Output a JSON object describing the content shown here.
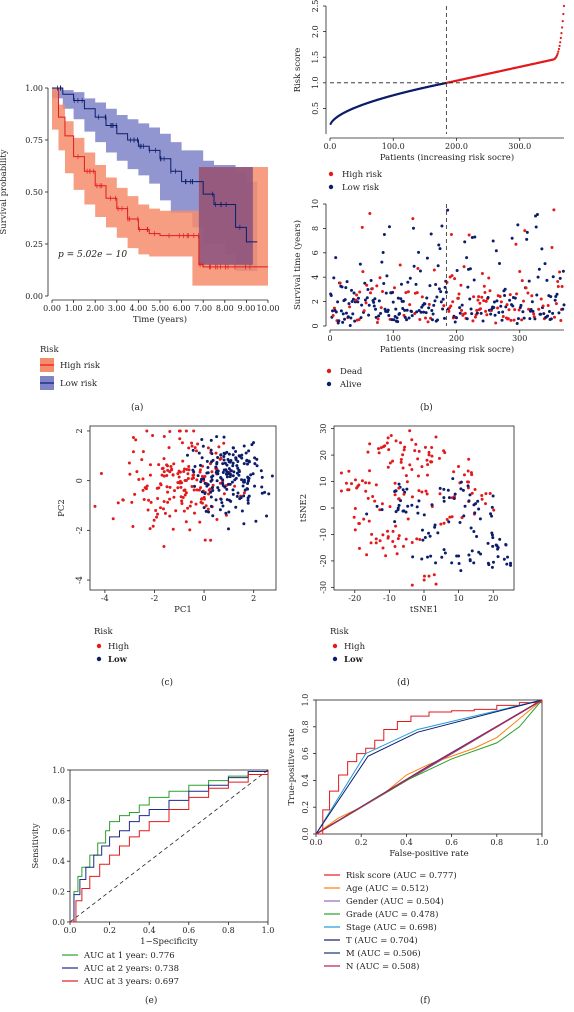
{
  "colors": {
    "high": "#e31a1c",
    "low": "#0b1d6b",
    "high_band": "#f58c6c",
    "low_band": "#7f84c8",
    "overlap": "#7a4a7e"
  },
  "panel_a": {
    "caption": "(a)",
    "pvalue": "p = 5.02e − 10",
    "legend_title": "Risk",
    "legend_items": [
      "High risk",
      "Low risk"
    ]
  },
  "panel_b": {
    "caption": "(b)",
    "top_legend": [
      "High risk",
      "Low risk"
    ],
    "bottom_legend": [
      "Dead",
      "Alive"
    ]
  },
  "panel_c": {
    "caption": "(c)",
    "legend_title": "Risk",
    "legend_items": [
      "High",
      "Low"
    ]
  },
  "panel_d": {
    "caption": "(d)",
    "legend_title": "Risk",
    "legend_items": [
      "High",
      "Low"
    ]
  },
  "panel_e": {
    "caption": "(e)",
    "legend": [
      "AUC at 1 year: 0.776",
      "AUC at 2 years: 0.738",
      "AUC at 3 years: 0.697"
    ]
  },
  "panel_f": {
    "caption": "(f)",
    "legend": [
      "Risk score (AUC = 0.777)",
      "Age (AUC = 0.512)",
      "Gender (AUC = 0.504)",
      "Grade (AUC = 0.478)",
      "Stage (AUC = 0.698)",
      "T (AUC = 0.704)",
      "M (AUC = 0.506)",
      "N (AUC = 0.508)"
    ]
  },
  "chart_data": [
    {
      "id": "km",
      "type": "line",
      "xlabel": "Time (years)",
      "ylabel": "Survival probability",
      "xlim": [
        0,
        10
      ],
      "ylim": [
        0,
        1
      ],
      "xticks": [
        0,
        1,
        2,
        3,
        4,
        5,
        6,
        7,
        8,
        9,
        10
      ],
      "yticks": [
        0.0,
        0.25,
        0.5,
        0.75,
        1.0
      ],
      "grid": false,
      "series": [
        {
          "name": "High risk",
          "x": [
            0,
            0.3,
            0.6,
            1,
            1.5,
            2,
            2.5,
            3,
            3.5,
            4,
            4.5,
            5,
            5.5,
            6,
            6.5,
            6.8,
            7,
            8,
            9,
            10
          ],
          "y": [
            1,
            0.86,
            0.77,
            0.67,
            0.6,
            0.53,
            0.47,
            0.42,
            0.37,
            0.32,
            0.3,
            0.29,
            0.29,
            0.29,
            0.29,
            0.15,
            0.14,
            0.14,
            0.14,
            0.14
          ],
          "band_upper": [
            1,
            0.92,
            0.84,
            0.76,
            0.69,
            0.63,
            0.57,
            0.52,
            0.48,
            0.44,
            0.42,
            0.41,
            0.41,
            0.41,
            0.41,
            0.62,
            0.62,
            0.62,
            0.62,
            0.62
          ],
          "band_lower": [
            1,
            0.8,
            0.7,
            0.59,
            0.51,
            0.44,
            0.38,
            0.33,
            0.28,
            0.23,
            0.2,
            0.19,
            0.19,
            0.19,
            0.19,
            0.05,
            0.05,
            0.05,
            0.05,
            0.05
          ]
        },
        {
          "name": "Low risk",
          "x": [
            0,
            0.5,
            1,
            1.5,
            2,
            2.5,
            3,
            3.5,
            4,
            4.5,
            5,
            5.5,
            6,
            6.5,
            7,
            7.5,
            8,
            8.5,
            9,
            9.5
          ],
          "y": [
            1,
            0.97,
            0.94,
            0.9,
            0.86,
            0.82,
            0.78,
            0.75,
            0.72,
            0.7,
            0.66,
            0.6,
            0.55,
            0.55,
            0.49,
            0.44,
            0.44,
            0.33,
            0.26,
            0.26
          ],
          "band_upper": [
            1,
            0.99,
            0.98,
            0.95,
            0.93,
            0.9,
            0.87,
            0.85,
            0.83,
            0.81,
            0.78,
            0.74,
            0.7,
            0.7,
            0.65,
            0.63,
            0.63,
            0.6,
            0.55,
            0.55
          ],
          "band_lower": [
            1,
            0.95,
            0.9,
            0.85,
            0.79,
            0.74,
            0.69,
            0.65,
            0.61,
            0.58,
            0.54,
            0.46,
            0.4,
            0.4,
            0.33,
            0.25,
            0.25,
            0.2,
            0.12,
            0.12
          ]
        }
      ]
    },
    {
      "id": "riskscore",
      "type": "scatter",
      "xlabel": "Patients (increasing risk socre)",
      "ylabel": "Risk score",
      "xlim": [
        0,
        370
      ],
      "ylim": [
        0,
        2.5
      ],
      "xticks": [
        0,
        100,
        200,
        300
      ],
      "yticks": [
        0.5,
        1.0,
        1.5,
        2.0,
        2.5
      ],
      "cutoff_x": 184,
      "cutoff_y": 1.0,
      "n": 370,
      "grid": false
    },
    {
      "id": "survtime",
      "type": "scatter",
      "xlabel": "Patients (increasing risk socre)",
      "ylabel": "Survival time (years)",
      "xlim": [
        0,
        370
      ],
      "ylim": [
        0,
        10
      ],
      "xticks": [
        0,
        100,
        200,
        300
      ],
      "yticks": [
        0,
        2,
        4,
        6,
        8,
        10
      ],
      "cutoff_x": 184,
      "grid": false
    },
    {
      "id": "pca",
      "type": "scatter",
      "xlabel": "PC1",
      "ylabel": "PC2",
      "xlim": [
        -4.6,
        2.9
      ],
      "ylim": [
        -4.4,
        2.2
      ],
      "xticks": [
        -4,
        -2,
        0,
        2
      ],
      "yticks": [
        -4,
        -2,
        0,
        2
      ],
      "grid": false
    },
    {
      "id": "tsne",
      "type": "scatter",
      "xlabel": "tSNE1",
      "ylabel": "tSNE2",
      "xlim": [
        -26,
        26
      ],
      "ylim": [
        -31,
        31
      ],
      "xticks": [
        -20,
        -10,
        0,
        10,
        20
      ],
      "yticks": [
        -30,
        -20,
        -10,
        0,
        10,
        20,
        30
      ],
      "grid": false
    },
    {
      "id": "roc_time",
      "type": "line",
      "xlabel": "1−Specificity",
      "ylabel": "Sensitivity",
      "xlim": [
        0,
        1
      ],
      "ylim": [
        0,
        1
      ],
      "xticks": [
        0.0,
        0.2,
        0.4,
        0.6,
        0.8,
        1.0
      ],
      "yticks": [
        0.0,
        0.2,
        0.4,
        0.6,
        0.8,
        1.0
      ],
      "grid": false,
      "series": [
        {
          "name": "AUC at 1 year: 0.776",
          "color": "#2ca02c",
          "x": [
            0,
            0.02,
            0.04,
            0.06,
            0.1,
            0.14,
            0.18,
            0.2,
            0.25,
            0.3,
            0.35,
            0.4,
            0.5,
            0.6,
            0.7,
            0.8,
            0.9,
            1
          ],
          "y": [
            0,
            0.2,
            0.3,
            0.36,
            0.44,
            0.52,
            0.6,
            0.66,
            0.7,
            0.72,
            0.77,
            0.82,
            0.86,
            0.9,
            0.93,
            0.96,
            0.99,
            1
          ]
        },
        {
          "name": "AUC at 2 years: 0.738",
          "color": "#1f2a8a",
          "x": [
            0,
            0.02,
            0.05,
            0.08,
            0.12,
            0.16,
            0.2,
            0.25,
            0.3,
            0.35,
            0.4,
            0.5,
            0.6,
            0.7,
            0.8,
            0.9,
            1
          ],
          "y": [
            0,
            0.18,
            0.28,
            0.36,
            0.44,
            0.5,
            0.56,
            0.6,
            0.66,
            0.7,
            0.74,
            0.8,
            0.86,
            0.9,
            0.95,
            0.99,
            1
          ]
        },
        {
          "name": "AUC at 3 years: 0.697",
          "color": "#e31a1c",
          "x": [
            0,
            0.03,
            0.06,
            0.1,
            0.15,
            0.2,
            0.25,
            0.3,
            0.35,
            0.4,
            0.5,
            0.6,
            0.7,
            0.8,
            0.9,
            1
          ],
          "y": [
            0,
            0.14,
            0.22,
            0.3,
            0.38,
            0.44,
            0.5,
            0.56,
            0.6,
            0.66,
            0.74,
            0.82,
            0.88,
            0.92,
            0.97,
            1
          ]
        }
      ]
    },
    {
      "id": "roc_clin",
      "type": "line",
      "xlabel": "False-positive rate",
      "ylabel": "True-positive rate",
      "xlim": [
        0,
        1
      ],
      "ylim": [
        0,
        1
      ],
      "xticks": [
        0.0,
        0.2,
        0.4,
        0.6,
        0.8,
        1.0
      ],
      "yticks": [
        0.0,
        0.2,
        0.4,
        0.6,
        0.8,
        1.0
      ],
      "grid": false,
      "series": [
        {
          "name": "Risk score (AUC = 0.777)",
          "color": "#e31a1c",
          "x": [
            0,
            0.03,
            0.06,
            0.1,
            0.14,
            0.18,
            0.22,
            0.26,
            0.3,
            0.36,
            0.42,
            0.5,
            0.6,
            0.7,
            0.8,
            0.9,
            1
          ],
          "y": [
            0,
            0.18,
            0.32,
            0.44,
            0.54,
            0.6,
            0.64,
            0.7,
            0.78,
            0.84,
            0.88,
            0.91,
            0.92,
            0.93,
            0.96,
            0.98,
            1
          ]
        },
        {
          "name": "Age (AUC = 0.512)",
          "color": "#ff7f0e",
          "x": [
            0,
            0.1,
            0.2,
            0.3,
            0.4,
            0.5,
            0.6,
            0.7,
            0.8,
            0.9,
            1
          ],
          "y": [
            0,
            0.12,
            0.2,
            0.3,
            0.44,
            0.52,
            0.58,
            0.64,
            0.72,
            0.86,
            1
          ]
        },
        {
          "name": "Gender (AUC = 0.504)",
          "color": "#9467bd",
          "x": [
            0,
            0.5,
            1
          ],
          "y": [
            0,
            0.5,
            1
          ]
        },
        {
          "name": "Grade (AUC = 0.478)",
          "color": "#2ca02c",
          "x": [
            0,
            0.2,
            0.4,
            0.6,
            0.8,
            0.9,
            1
          ],
          "y": [
            0,
            0.2,
            0.4,
            0.56,
            0.68,
            0.8,
            1
          ]
        },
        {
          "name": "Stage (AUC = 0.698)",
          "color": "#1f9bd6",
          "x": [
            0,
            0.22,
            0.45,
            1
          ],
          "y": [
            0,
            0.6,
            0.78,
            1
          ]
        },
        {
          "name": "T (AUC = 0.704)",
          "color": "#0b1d6b",
          "x": [
            0,
            0.23,
            0.45,
            1
          ],
          "y": [
            0,
            0.58,
            0.76,
            1
          ]
        },
        {
          "name": "M (AUC = 0.506)",
          "color": "#17356b",
          "x": [
            0,
            0.5,
            1
          ],
          "y": [
            0,
            0.51,
            1
          ]
        },
        {
          "name": "N (AUC = 0.508)",
          "color": "#c2185b",
          "x": [
            0,
            0.5,
            1
          ],
          "y": [
            0,
            0.505,
            1
          ]
        }
      ]
    }
  ]
}
